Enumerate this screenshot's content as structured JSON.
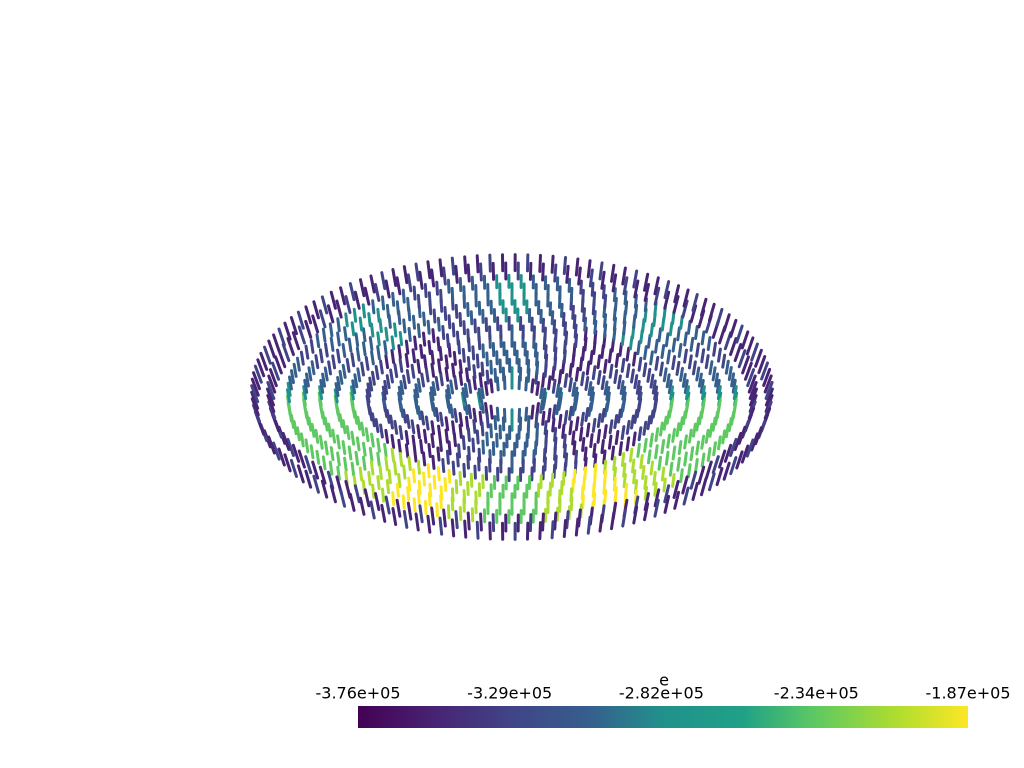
{
  "scalar_bar": {
    "title": "e",
    "clim": [
      -376000,
      -187000
    ],
    "ticks": [
      {
        "value": -376000,
        "label": "-3.76e+05"
      },
      {
        "value": -329000,
        "label": "-3.29e+05"
      },
      {
        "value": -282000,
        "label": "-2.82e+05"
      },
      {
        "value": -234000,
        "label": "-2.34e+05"
      },
      {
        "value": -187000,
        "label": "-1.87e+05"
      }
    ]
  }
}
